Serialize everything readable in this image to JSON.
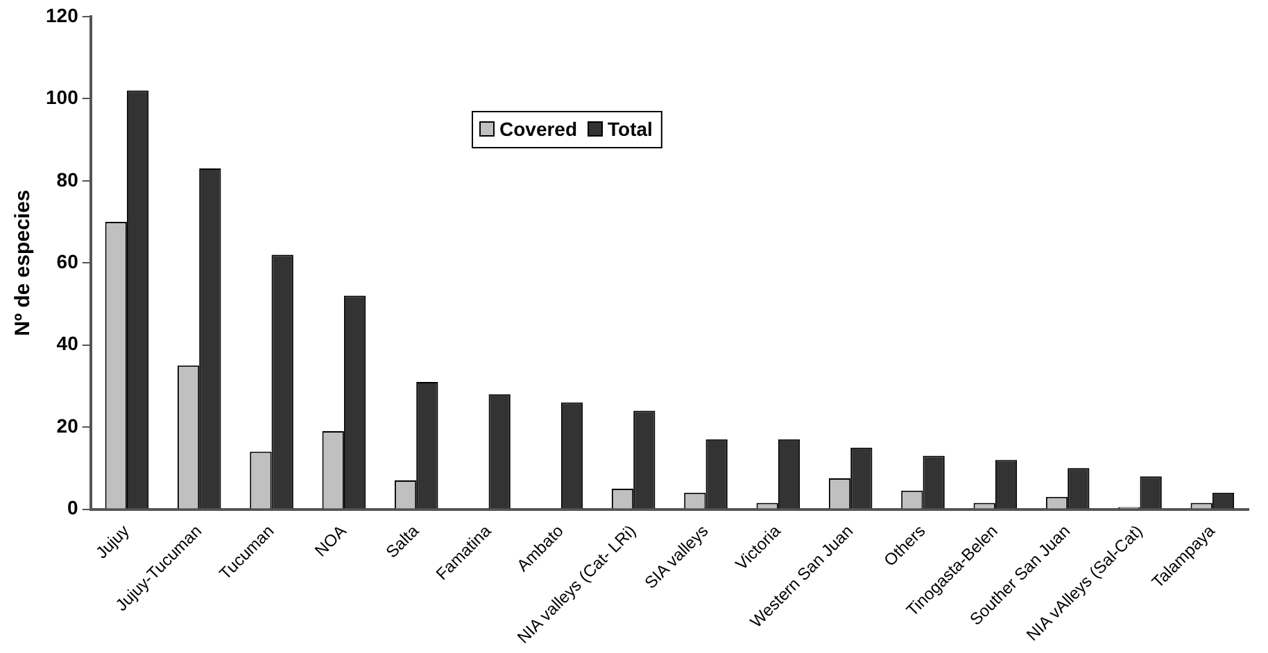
{
  "chart_data": {
    "type": "bar",
    "ylabel": "Nº de especies",
    "categories": [
      "Jujuy",
      "Jujuy-Tucuman",
      "Tucuman",
      "NOA",
      "Salta",
      "Famatina",
      "Ambato",
      "NIA valleys (Cat- LRi)",
      "SIA valleys",
      "Victoria",
      "Western San Juan",
      "Others",
      "Tinogasta-Belen",
      "Souther San Juan",
      "NIA vAlleys (Sal-Cat)",
      "Talampaya"
    ],
    "series": [
      {
        "name": "Covered",
        "color": "#c0c0c0",
        "values": [
          70,
          35,
          14,
          19,
          7,
          0,
          0,
          5,
          4,
          1.5,
          7.5,
          4.5,
          1.5,
          3,
          0.5,
          1.5
        ]
      },
      {
        "name": "Total",
        "color": "#333333",
        "values": [
          102,
          83,
          62,
          52,
          31,
          28,
          26,
          24,
          17,
          17,
          15,
          13,
          12,
          10,
          8,
          4
        ]
      }
    ],
    "ylim": [
      0,
      120
    ],
    "yticks": [
      0,
      20,
      40,
      60,
      80,
      100,
      120
    ],
    "grid": false,
    "legend": "top"
  }
}
